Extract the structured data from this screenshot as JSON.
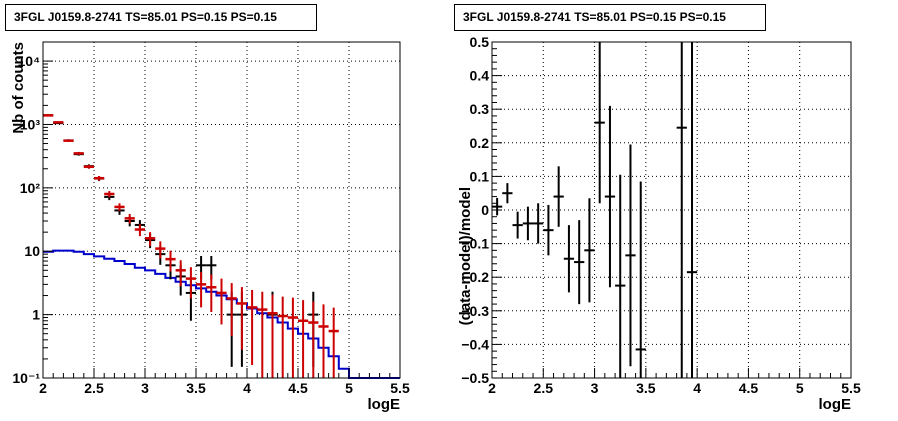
{
  "colors": {
    "data": "#000000",
    "model": "#cc0000",
    "background_model": "#0000cc",
    "grid": "#000000"
  },
  "chart_data": [
    {
      "type": "histogram",
      "title": "3FGL J0159.8-2741 TS=85.01 PS=0.15 PS=0.15",
      "xlabel": "logE",
      "ylabel": "Nb of counts",
      "yscale": "log",
      "xlim": [
        2,
        5.5
      ],
      "ylim": [
        0.1,
        20000
      ],
      "grid": true,
      "xticks": [
        "2",
        "2.5",
        "3",
        "3.5",
        "4",
        "4.5",
        "5",
        "5.5"
      ],
      "yticks": [
        "10⁻¹",
        "1",
        "10",
        "10²",
        "10³",
        "10⁴"
      ],
      "bin_width": 0.1,
      "series": [
        {
          "kind": "data_points",
          "x": [
            2.05,
            2.15,
            2.25,
            2.35,
            2.45,
            2.55,
            2.65,
            2.75,
            2.85,
            2.95,
            3.05,
            3.15,
            3.25,
            3.35,
            3.45,
            3.55,
            3.65,
            3.75,
            3.85,
            3.95,
            4.05,
            4.15,
            4.25,
            4.35,
            4.45,
            4.55,
            4.65,
            4.75,
            4.85,
            4.95
          ],
          "y": [
            1400,
            1050,
            560,
            340,
            220,
            140,
            72,
            44,
            30,
            26,
            15,
            9,
            6,
            4,
            2.2,
            6,
            6,
            0.4,
            1,
            1,
            0.4,
            0.4,
            1,
            0.4,
            0.4,
            0.4,
            1,
            0.4,
            0.4,
            0.4
          ],
          "err_lo": [
            37,
            32,
            24,
            18,
            15,
            12,
            8,
            6.5,
            5.3,
            5,
            3.8,
            2.9,
            2.4,
            2,
            1.4,
            2.4,
            2.4,
            0.1,
            0.85,
            0.85,
            0.1,
            0.1,
            0.85,
            0.1,
            0.1,
            0.1,
            0.85,
            0.1,
            0.1,
            0.1
          ],
          "err_hi": [
            37,
            32,
            24,
            18,
            15,
            12,
            8,
            6.5,
            5.3,
            5,
            3.8,
            2.9,
            2.4,
            2,
            1.4,
            2.4,
            2.4,
            0.4,
            1.3,
            1.3,
            0.4,
            0.4,
            1.3,
            0.4,
            0.4,
            0.4,
            1.3,
            0.4,
            0.4,
            0.4
          ],
          "draw": [
            true,
            true,
            true,
            true,
            true,
            true,
            true,
            true,
            true,
            true,
            true,
            true,
            true,
            true,
            true,
            true,
            true,
            false,
            true,
            true,
            false,
            false,
            true,
            false,
            false,
            false,
            true,
            false,
            false,
            false
          ]
        },
        {
          "kind": "model_points",
          "x": [
            2.05,
            2.15,
            2.25,
            2.35,
            2.45,
            2.55,
            2.65,
            2.75,
            2.85,
            2.95,
            3.05,
            3.15,
            3.25,
            3.35,
            3.45,
            3.55,
            3.65,
            3.75,
            3.85,
            3.95,
            4.05,
            4.15,
            4.25,
            4.35,
            4.45,
            4.55,
            4.65,
            4.75,
            4.85
          ],
          "y": [
            1390,
            1080,
            555,
            350,
            215,
            142,
            80,
            50,
            33,
            22,
            16,
            11,
            7.5,
            5,
            3.7,
            3,
            2.7,
            2.2,
            1.8,
            1.5,
            1.3,
            1.2,
            1.05,
            0.95,
            0.9,
            0.8,
            0.75,
            0.65,
            0.55
          ],
          "err_lo": [
            37,
            33,
            24,
            19,
            15,
            12,
            9,
            7,
            5.7,
            4.7,
            4,
            3.3,
            2.7,
            2.2,
            1.9,
            1.7,
            1.6,
            1.5,
            1.34,
            1.22,
            1.14,
            1.1,
            1.02,
            0.97,
            0.95,
            0.89,
            0.86,
            0.8,
            0.74
          ],
          "err_hi": [
            37,
            33,
            24,
            19,
            15,
            12,
            9,
            7,
            5.7,
            4.7,
            4,
            3.3,
            2.7,
            2.2,
            1.9,
            1.7,
            1.6,
            1.5,
            1.34,
            1.22,
            1.14,
            1.1,
            1.02,
            0.97,
            0.95,
            0.89,
            0.86,
            0.8,
            0.74
          ]
        },
        {
          "kind": "background_histogram",
          "bin_edges": [
            2.0,
            2.1,
            2.2,
            2.3,
            2.4,
            2.5,
            2.6,
            2.7,
            2.8,
            2.9,
            3.0,
            3.1,
            3.2,
            3.3,
            3.4,
            3.5,
            3.6,
            3.7,
            3.8,
            3.9,
            4.0,
            4.1,
            4.2,
            4.3,
            4.4,
            4.5,
            4.6,
            4.7,
            4.8,
            4.9,
            5.0,
            5.1,
            5.2,
            5.3,
            5.4,
            5.5
          ],
          "values": [
            9.8,
            10.2,
            10.2,
            9.8,
            9.0,
            8.3,
            7.6,
            7.0,
            6.3,
            5.5,
            5.0,
            4.4,
            3.8,
            3.3,
            2.9,
            2.6,
            2.3,
            2.0,
            1.75,
            1.5,
            1.25,
            1.05,
            0.9,
            0.75,
            0.6,
            0.5,
            0.42,
            0.3,
            0.22,
            0.14,
            0.1,
            0.1,
            0.1,
            0.1,
            0.1
          ]
        }
      ]
    },
    {
      "type": "scatter_errorbars",
      "title": "3FGL J0159.8-2741 TS=85.01 PS=0.15 PS=0.15",
      "xlabel": "logE",
      "ylabel": "(data-model)/model",
      "xlim": [
        2,
        5.5
      ],
      "ylim": [
        -0.5,
        0.5
      ],
      "grid": true,
      "xticks": [
        "2",
        "2.5",
        "3",
        "3.5",
        "4",
        "4.5",
        "5",
        "5.5"
      ],
      "yticks": [
        "−0.5",
        "−0.4",
        "−0.3",
        "−0.2",
        "−0.1",
        "0",
        "0.1",
        "0.2",
        "0.3",
        "0.4",
        "0.5"
      ],
      "x": [
        2.05,
        2.15,
        2.25,
        2.35,
        2.45,
        2.55,
        2.65,
        2.75,
        2.85,
        2.95,
        3.05,
        3.15,
        3.25,
        3.35,
        3.45,
        3.85,
        3.95
      ],
      "y": [
        0.01,
        0.05,
        -0.045,
        -0.04,
        -0.04,
        -0.06,
        0.04,
        -0.145,
        -0.155,
        -0.12,
        0.26,
        0.04,
        -0.225,
        -0.135,
        -0.415,
        0.245,
        -0.185
      ],
      "err": [
        0.026,
        0.03,
        0.04,
        0.05,
        0.06,
        0.075,
        0.09,
        0.1,
        0.125,
        0.155,
        0.24,
        0.27,
        0.33,
        0.33,
        0.5,
        0.8,
        0.8
      ]
    }
  ]
}
